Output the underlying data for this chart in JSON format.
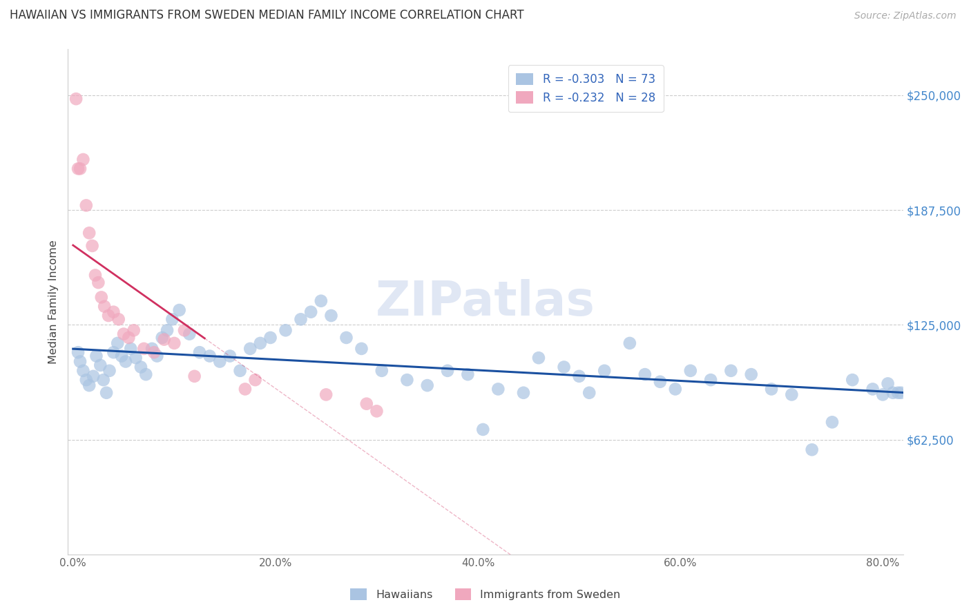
{
  "title": "HAWAIIAN VS IMMIGRANTS FROM SWEDEN MEDIAN FAMILY INCOME CORRELATION CHART",
  "source": "Source: ZipAtlas.com",
  "ylabel": "Median Family Income",
  "ytick_labels": [
    "$62,500",
    "$125,000",
    "$187,500",
    "$250,000"
  ],
  "ytick_vals": [
    62500,
    125000,
    187500,
    250000
  ],
  "ylim": [
    0,
    275000
  ],
  "xlim": [
    -0.5,
    82
  ],
  "xtick_vals": [
    0,
    20,
    40,
    60,
    80
  ],
  "xtick_labels": [
    "0.0%",
    "20.0%",
    "40.0%",
    "60.0%",
    "80.0%"
  ],
  "hawaiians_color": "#aac4e2",
  "sweden_color": "#f0a8be",
  "trendline_h_color": "#1a50a0",
  "trendline_s_color": "#d03060",
  "watermark": "ZIPatlas",
  "watermark_color": "#ccd8ee",
  "r1": "-0.303",
  "n1": "73",
  "r2": "-0.232",
  "n2": "28",
  "hawaii_label": "Hawaiians",
  "sweden_label": "Immigrants from Sweden",
  "hawaiians_x": [
    0.5,
    0.7,
    1.0,
    1.3,
    1.6,
    2.0,
    2.3,
    2.7,
    3.0,
    3.3,
    3.6,
    4.0,
    4.4,
    4.8,
    5.2,
    5.7,
    6.2,
    6.7,
    7.2,
    7.8,
    8.3,
    8.8,
    9.3,
    9.8,
    10.5,
    11.5,
    12.5,
    13.5,
    14.5,
    15.5,
    16.5,
    17.5,
    18.5,
    19.5,
    21.0,
    22.5,
    23.5,
    24.5,
    25.5,
    27.0,
    28.5,
    30.5,
    33.0,
    35.0,
    37.0,
    39.0,
    40.5,
    42.0,
    44.5,
    46.0,
    48.5,
    50.0,
    51.0,
    52.5,
    55.0,
    56.5,
    58.0,
    59.5,
    61.0,
    63.0,
    65.0,
    67.0,
    69.0,
    71.0,
    73.0,
    75.0,
    77.0,
    79.0,
    80.0,
    80.5,
    81.0,
    81.5,
    81.8
  ],
  "hawaiians_y": [
    110000,
    105000,
    100000,
    95000,
    92000,
    97000,
    108000,
    103000,
    95000,
    88000,
    100000,
    110000,
    115000,
    108000,
    105000,
    112000,
    107000,
    102000,
    98000,
    112000,
    108000,
    118000,
    122000,
    128000,
    133000,
    120000,
    110000,
    108000,
    105000,
    108000,
    100000,
    112000,
    115000,
    118000,
    122000,
    128000,
    132000,
    138000,
    130000,
    118000,
    112000,
    100000,
    95000,
    92000,
    100000,
    98000,
    68000,
    90000,
    88000,
    107000,
    102000,
    97000,
    88000,
    100000,
    115000,
    98000,
    94000,
    90000,
    100000,
    95000,
    100000,
    98000,
    90000,
    87000,
    57000,
    72000,
    95000,
    90000,
    87000,
    93000,
    88000,
    88000,
    88000
  ],
  "sweden_x": [
    0.3,
    0.5,
    0.7,
    1.0,
    1.3,
    1.6,
    1.9,
    2.2,
    2.5,
    2.8,
    3.1,
    3.5,
    4.0,
    4.5,
    5.0,
    5.5,
    6.0,
    7.0,
    8.0,
    9.0,
    10.0,
    11.0,
    12.0,
    17.0,
    18.0,
    25.0,
    29.0,
    30.0
  ],
  "sweden_y": [
    248000,
    210000,
    210000,
    215000,
    190000,
    175000,
    168000,
    152000,
    148000,
    140000,
    135000,
    130000,
    132000,
    128000,
    120000,
    118000,
    122000,
    112000,
    110000,
    117000,
    115000,
    122000,
    97000,
    90000,
    95000,
    87000,
    82000,
    78000
  ]
}
